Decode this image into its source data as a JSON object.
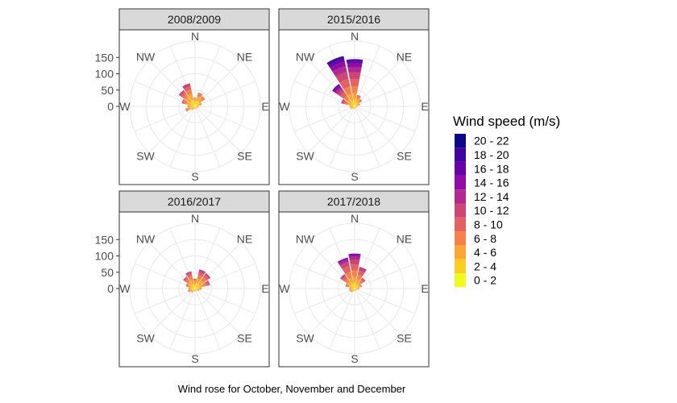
{
  "chart_data": {
    "type": "wind_rose",
    "caption": "Wind rose for October, November and December",
    "directions": [
      "N",
      "NE",
      "E",
      "SE",
      "S",
      "SW",
      "W",
      "NW"
    ],
    "sector_angles": [
      0,
      22.5,
      45,
      67.5,
      90,
      112.5,
      135,
      157.5,
      180,
      202.5,
      225,
      247.5,
      270,
      292.5,
      315,
      337.5
    ],
    "radial_ticks": [
      0,
      50,
      100,
      150
    ],
    "radial_tick_labels": [
      "0",
      "50",
      "100",
      "150"
    ],
    "rmax": 200,
    "legend": {
      "title": "Wind speed (m/s)",
      "bins": [
        "20 - 22",
        "18 - 20",
        "16 - 18",
        "14 - 16",
        "12 - 14",
        "10 - 12",
        "8 - 10",
        "6 - 8",
        "4 - 6",
        "2 - 4",
        "0 - 2"
      ],
      "colors": [
        "#0D0887",
        "#41049D",
        "#6A00A8",
        "#8F0DA4",
        "#B12A90",
        "#CC4778",
        "#E16462",
        "#F2844B",
        "#FCA636",
        "#FCCE25",
        "#F0F921"
      ]
    },
    "panels": [
      {
        "title": "2008/2009",
        "sectors": [
          {
            "angle": 0,
            "stacks": [
              5,
              10,
              8,
              4
            ]
          },
          {
            "angle": 22.5,
            "stacks": [
              5,
              12,
              14,
              9,
              3
            ]
          },
          {
            "angle": 45,
            "stacks": [
              5,
              12,
              12,
              7,
              2
            ]
          },
          {
            "angle": 67.5,
            "stacks": [
              4,
              8,
              6,
              3
            ]
          },
          {
            "angle": 90,
            "stacks": [
              3,
              5,
              3
            ]
          },
          {
            "angle": 112.5,
            "stacks": [
              3,
              4,
              2
            ]
          },
          {
            "angle": 135,
            "stacks": [
              2,
              3,
              1
            ]
          },
          {
            "angle": 157.5,
            "stacks": [
              2,
              3,
              1
            ]
          },
          {
            "angle": 180,
            "stacks": [
              2,
              3,
              2
            ]
          },
          {
            "angle": 202.5,
            "stacks": [
              2,
              4,
              2
            ]
          },
          {
            "angle": 225,
            "stacks": [
              3,
              5,
              4,
              2
            ]
          },
          {
            "angle": 247.5,
            "stacks": [
              4,
              9,
              9,
              6,
              2
            ]
          },
          {
            "angle": 270,
            "stacks": [
              4,
              8,
              7,
              4
            ]
          },
          {
            "angle": 292.5,
            "stacks": [
              5,
              11,
              12,
              8,
              4,
              2
            ]
          },
          {
            "angle": 315,
            "stacks": [
              5,
              14,
              16,
              12,
              8,
              4,
              2
            ]
          },
          {
            "angle": 337.5,
            "stacks": [
              6,
              15,
              18,
              14,
              10,
              6,
              3
            ]
          }
        ]
      },
      {
        "title": "2015/2016",
        "sectors": [
          {
            "angle": 0,
            "stacks": [
              6,
              14,
              20,
              22,
              22,
              20,
              16,
              12,
              8,
              4,
              1
            ]
          },
          {
            "angle": 22.5,
            "stacks": [
              5,
              10,
              10,
              7,
              4
            ]
          },
          {
            "angle": 45,
            "stacks": [
              4,
              8,
              8,
              5,
              3
            ]
          },
          {
            "angle": 67.5,
            "stacks": [
              3,
              6,
              5,
              3
            ]
          },
          {
            "angle": 90,
            "stacks": [
              2,
              4,
              3
            ]
          },
          {
            "angle": 112.5,
            "stacks": [
              2,
              3,
              2
            ]
          },
          {
            "angle": 135,
            "stacks": [
              2,
              3,
              1
            ]
          },
          {
            "angle": 157.5,
            "stacks": [
              2,
              3,
              1
            ]
          },
          {
            "angle": 180,
            "stacks": [
              2,
              3,
              1
            ]
          },
          {
            "angle": 202.5,
            "stacks": [
              2,
              3,
              2
            ]
          },
          {
            "angle": 225,
            "stacks": [
              2,
              4,
              3
            ]
          },
          {
            "angle": 247.5,
            "stacks": [
              3,
              5,
              4,
              2
            ]
          },
          {
            "angle": 270,
            "stacks": [
              3,
              5,
              4,
              2
            ]
          },
          {
            "angle": 292.5,
            "stacks": [
              4,
              8,
              10,
              8,
              6,
              4,
              2
            ]
          },
          {
            "angle": 315,
            "stacks": [
              5,
              10,
              13,
              14,
              12,
              10,
              8,
              6,
              4,
              2
            ]
          },
          {
            "angle": 337.5,
            "stacks": [
              6,
              14,
              20,
              22,
              24,
              22,
              18,
              14,
              10,
              6,
              2
            ]
          }
        ]
      },
      {
        "title": "2016/2017",
        "sectors": [
          {
            "angle": 0,
            "stacks": [
              4,
              8,
              8,
              6,
              4
            ]
          },
          {
            "angle": 22.5,
            "stacks": [
              5,
              11,
              14,
              12,
              9,
              6,
              3
            ]
          },
          {
            "angle": 45,
            "stacks": [
              5,
              12,
              14,
              12,
              9,
              6
            ]
          },
          {
            "angle": 67.5,
            "stacks": [
              4,
              10,
              12,
              10,
              7,
              4
            ]
          },
          {
            "angle": 90,
            "stacks": [
              4,
              7,
              6,
              3
            ]
          },
          {
            "angle": 112.5,
            "stacks": [
              3,
              5,
              4,
              2
            ]
          },
          {
            "angle": 135,
            "stacks": [
              2,
              4,
              2
            ]
          },
          {
            "angle": 157.5,
            "stacks": [
              2,
              3,
              2
            ]
          },
          {
            "angle": 180,
            "stacks": [
              2,
              4,
              2
            ]
          },
          {
            "angle": 202.5,
            "stacks": [
              3,
              4,
              2
            ]
          },
          {
            "angle": 225,
            "stacks": [
              3,
              6,
              4,
              2
            ]
          },
          {
            "angle": 247.5,
            "stacks": [
              4,
              8,
              6,
              4
            ]
          },
          {
            "angle": 270,
            "stacks": [
              4,
              7,
              6,
              3
            ]
          },
          {
            "angle": 292.5,
            "stacks": [
              4,
              8,
              8,
              6,
              3
            ]
          },
          {
            "angle": 315,
            "stacks": [
              4,
              10,
              12,
              10,
              6,
              3
            ]
          },
          {
            "angle": 337.5,
            "stacks": [
              5,
              10,
              13,
              12,
              8,
              4,
              2
            ]
          }
        ]
      },
      {
        "title": "2017/2018",
        "sectors": [
          {
            "angle": 0,
            "stacks": [
              5,
              13,
              18,
              20,
              18,
              14,
              10,
              6,
              3
            ]
          },
          {
            "angle": 22.5,
            "stacks": [
              5,
              11,
              14,
              14,
              12,
              8,
              4
            ]
          },
          {
            "angle": 45,
            "stacks": [
              4,
              9,
              10,
              9,
              6,
              3
            ]
          },
          {
            "angle": 67.5,
            "stacks": [
              4,
              7,
              6,
              4,
              2
            ]
          },
          {
            "angle": 90,
            "stacks": [
              3,
              5,
              4,
              2
            ]
          },
          {
            "angle": 112.5,
            "stacks": [
              2,
              4,
              2
            ]
          },
          {
            "angle": 135,
            "stacks": [
              2,
              3,
              2
            ]
          },
          {
            "angle": 157.5,
            "stacks": [
              2,
              3,
              1
            ]
          },
          {
            "angle": 180,
            "stacks": [
              2,
              3,
              2
            ]
          },
          {
            "angle": 202.5,
            "stacks": [
              2,
              4,
              2
            ]
          },
          {
            "angle": 225,
            "stacks": [
              3,
              5,
              4,
              2
            ]
          },
          {
            "angle": 247.5,
            "stacks": [
              3,
              6,
              5,
              3
            ]
          },
          {
            "angle": 270,
            "stacks": [
              3,
              6,
              5,
              2
            ]
          },
          {
            "angle": 292.5,
            "stacks": [
              4,
              8,
              8,
              6,
              3
            ]
          },
          {
            "angle": 315,
            "stacks": [
              4,
              10,
              12,
              12,
              9,
              5,
              2
            ]
          },
          {
            "angle": 337.5,
            "stacks": [
              5,
              12,
              17,
              19,
              17,
              13,
              8,
              4,
              2
            ]
          }
        ]
      }
    ]
  }
}
